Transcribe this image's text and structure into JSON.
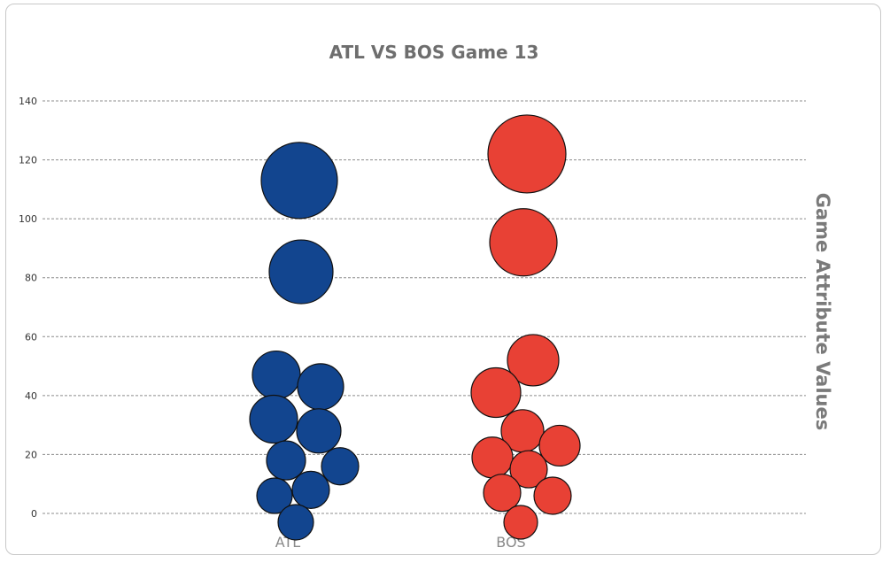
{
  "chart_data": {
    "type": "scatter",
    "title": "ATL VS BOS Game 13",
    "xlabel": "",
    "ylabel": "Game Attribute Values",
    "ylim": [
      -8,
      142
    ],
    "yticks": [
      0,
      20,
      40,
      60,
      80,
      100,
      120,
      140
    ],
    "categories": [
      "ATL",
      "BOS"
    ],
    "grid": true,
    "series": [
      {
        "category": "ATL",
        "color": "#12458f",
        "values": [
          113,
          82,
          47,
          43,
          32,
          28,
          18,
          16,
          6,
          8,
          -3
        ]
      },
      {
        "category": "BOS",
        "color": "#e84135",
        "values": [
          122,
          92,
          52,
          41,
          28,
          23,
          19,
          15,
          7,
          6,
          -3
        ]
      }
    ]
  }
}
